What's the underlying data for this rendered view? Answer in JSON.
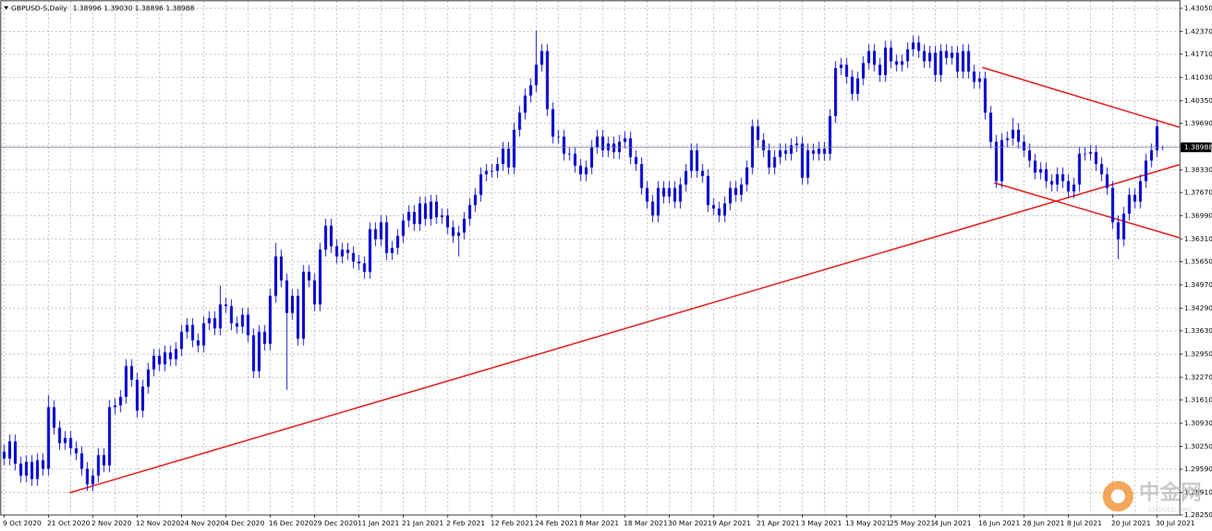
{
  "chart_data": {
    "type": "candlestick",
    "symbol": "GBPUSD-S,Daily",
    "quote": "1.38996 1.39030 1.38896 1.38988",
    "color": "#0000cc",
    "grid": true,
    "ylim": [
      1.2825,
      1.4327
    ],
    "yticks": [
      {
        "value": 1.4305,
        "label": "1.43050"
      },
      {
        "value": 1.4237,
        "label": "1.42370"
      },
      {
        "value": 1.4171,
        "label": "1.41710"
      },
      {
        "value": 1.4103,
        "label": "1.41030"
      },
      {
        "value": 1.4035,
        "label": "1.40350"
      },
      {
        "value": 1.3969,
        "label": "1.39690"
      },
      {
        "value": 1.3903,
        "label": "1.39030"
      },
      {
        "value": 1.3833,
        "label": "1.38330"
      },
      {
        "value": 1.3767,
        "label": "1.37670"
      },
      {
        "value": 1.3699,
        "label": "1.36990"
      },
      {
        "value": 1.3631,
        "label": "1.36310"
      },
      {
        "value": 1.3565,
        "label": "1.35650"
      },
      {
        "value": 1.3497,
        "label": "1.34970"
      },
      {
        "value": 1.3429,
        "label": "1.34290"
      },
      {
        "value": 1.3363,
        "label": "1.33630"
      },
      {
        "value": 1.3295,
        "label": "1.32950"
      },
      {
        "value": 1.3227,
        "label": "1.32270"
      },
      {
        "value": 1.3161,
        "label": "1.31610"
      },
      {
        "value": 1.3093,
        "label": "1.30930"
      },
      {
        "value": 1.3025,
        "label": "1.30250"
      },
      {
        "value": 1.2959,
        "label": "1.29590"
      },
      {
        "value": 1.2891,
        "label": "1.28910"
      },
      {
        "value": 1.2825,
        "label": "1.28250"
      }
    ],
    "current_price": {
      "value": 1.38988,
      "label": "1.38988"
    },
    "categories": [
      "9 Oct 2020",
      null,
      null,
      null,
      null,
      null,
      null,
      null,
      "21 Oct 2020",
      null,
      null,
      null,
      null,
      null,
      null,
      null,
      "2 Nov 2020",
      null,
      null,
      null,
      null,
      null,
      null,
      null,
      "12 Nov 2020",
      null,
      null,
      null,
      null,
      null,
      null,
      null,
      "24 Nov 2020",
      null,
      null,
      null,
      null,
      null,
      null,
      null,
      "4 Dec 2020",
      null,
      null,
      null,
      null,
      null,
      null,
      null,
      "16 Dec 2020",
      null,
      null,
      null,
      null,
      null,
      null,
      null,
      "29 Dec 2020",
      null,
      null,
      null,
      null,
      null,
      null,
      null,
      "11 Jan 2021",
      null,
      null,
      null,
      null,
      null,
      null,
      null,
      "21 Jan 2021",
      null,
      null,
      null,
      null,
      null,
      null,
      null,
      "2 Feb 2021",
      null,
      null,
      null,
      null,
      null,
      null,
      null,
      "12 Feb 2021",
      null,
      null,
      null,
      null,
      null,
      null,
      null,
      "24 Feb 2021",
      null,
      null,
      null,
      null,
      null,
      null,
      null,
      "8 Mar 2021",
      null,
      null,
      null,
      null,
      null,
      null,
      null,
      "18 Mar 2021",
      null,
      null,
      null,
      null,
      null,
      null,
      null,
      "30 Mar 2021",
      null,
      null,
      null,
      null,
      null,
      null,
      null,
      "9 Apr 2021",
      null,
      null,
      null,
      null,
      null,
      null,
      null,
      "21 Apr 2021",
      null,
      null,
      null,
      null,
      null,
      null,
      null,
      "3 May 2021",
      null,
      null,
      null,
      null,
      null,
      null,
      null,
      "13 May 2021",
      null,
      null,
      null,
      null,
      null,
      null,
      null,
      "25 May 2021",
      null,
      null,
      null,
      null,
      null,
      null,
      null,
      "4 Jun 2021",
      null,
      null,
      null,
      null,
      null,
      null,
      null,
      "16 Jun 2021",
      null,
      null,
      null,
      null,
      null,
      null,
      null,
      "28 Jun 2021",
      null,
      null,
      null,
      null,
      null,
      null,
      null,
      "8 Jul 2021",
      null,
      null,
      null,
      null,
      null,
      null,
      null,
      "20 Jul 2021",
      null,
      null,
      null,
      null,
      null,
      null,
      null,
      "30 Jul 2021",
      null
    ],
    "open": [
      1.301,
      1.299,
      1.304,
      1.2975,
      1.294,
      1.298,
      1.293,
      1.2985,
      1.296,
      1.314,
      1.308,
      1.3035,
      1.305,
      1.302,
      1.3005,
      1.296,
      1.2915,
      1.294,
      1.3,
      1.297,
      1.314,
      1.3145,
      1.317,
      1.326,
      1.322,
      1.313,
      1.32,
      1.325,
      1.329,
      1.3265,
      1.33,
      1.328,
      1.331,
      1.336,
      1.338,
      1.3335,
      1.332,
      1.3385,
      1.34,
      1.337,
      1.344,
      1.3435,
      1.3385,
      1.3375,
      1.341,
      1.335,
      1.3245,
      1.336,
      1.3325,
      1.3465,
      1.358,
      1.351,
      1.3415,
      1.3465,
      1.334,
      1.3535,
      1.351,
      1.344,
      1.36,
      1.367,
      1.361,
      1.358,
      1.36,
      1.359,
      1.3565,
      1.356,
      1.3535,
      1.366,
      1.363,
      1.368,
      1.359,
      1.3605,
      1.364,
      1.3685,
      1.371,
      1.3675,
      1.3735,
      1.369,
      1.374,
      1.3695,
      1.37,
      1.3665,
      1.364,
      1.365,
      1.369,
      1.373,
      1.376,
      1.382,
      1.383,
      1.383,
      1.385,
      1.3895,
      1.384,
      1.395,
      1.4,
      1.405,
      1.408,
      1.414,
      1.418,
      1.401,
      1.393,
      1.393,
      1.388,
      1.388,
      1.3845,
      1.382,
      1.384,
      1.39,
      1.393,
      1.389,
      1.391,
      1.3885,
      1.3915,
      1.3925,
      1.387,
      1.385,
      1.378,
      1.374,
      1.37,
      1.378,
      1.3755,
      1.378,
      1.374,
      1.379,
      1.383,
      1.389,
      1.383,
      1.3815,
      1.373,
      1.372,
      1.37,
      1.3735,
      1.378,
      1.376,
      1.379,
      1.384,
      1.396,
      1.392,
      1.389,
      1.384,
      1.387,
      1.389,
      1.388,
      1.3905,
      1.391,
      1.381,
      1.389,
      1.388,
      1.3895,
      1.388,
      1.399,
      1.413,
      1.414,
      1.4105,
      1.4055,
      1.41,
      1.4145,
      1.418,
      1.414,
      1.411,
      1.419,
      1.415,
      1.414,
      1.415,
      1.4185,
      1.4205,
      1.418,
      1.415,
      1.4175,
      1.411,
      1.418,
      1.416,
      1.4175,
      1.412,
      1.418,
      1.412,
      1.409,
      1.41,
      1.4,
      1.3915,
      1.38,
      1.392,
      1.3925,
      1.395,
      1.3915,
      1.389,
      1.386,
      1.3825,
      1.3835,
      1.38,
      1.379,
      1.382,
      1.38,
      1.377,
      1.379,
      1.388,
      1.388,
      1.3885,
      1.385,
      1.382,
      1.378,
      1.368,
      1.363,
      1.3705,
      1.376,
      1.374,
      1.38,
      1.386,
      1.389,
      1.38996
    ],
    "high": [
      1.303,
      1.306,
      1.306,
      1.2995,
      1.3,
      1.3,
      1.3005,
      1.3005,
      1.3175,
      1.316,
      1.31,
      1.307,
      1.307,
      1.304,
      1.3025,
      1.298,
      1.296,
      1.302,
      1.302,
      1.316,
      1.3165,
      1.319,
      1.328,
      1.328,
      1.324,
      1.322,
      1.327,
      1.331,
      1.331,
      1.332,
      1.332,
      1.333,
      1.338,
      1.34,
      1.34,
      1.3355,
      1.3405,
      1.342,
      1.342,
      1.3495,
      1.346,
      1.3455,
      1.3405,
      1.343,
      1.343,
      1.337,
      1.338,
      1.338,
      1.3485,
      1.362,
      1.36,
      1.353,
      1.3485,
      1.3485,
      1.3555,
      1.3555,
      1.353,
      1.362,
      1.369,
      1.369,
      1.363,
      1.362,
      1.362,
      1.361,
      1.3585,
      1.358,
      1.368,
      1.368,
      1.37,
      1.37,
      1.3625,
      1.366,
      1.3705,
      1.373,
      1.373,
      1.3755,
      1.3755,
      1.376,
      1.376,
      1.372,
      1.372,
      1.3685,
      1.367,
      1.371,
      1.375,
      1.378,
      1.384,
      1.385,
      1.385,
      1.387,
      1.3915,
      1.3915,
      1.397,
      1.402,
      1.407,
      1.41,
      1.424,
      1.42,
      1.42,
      1.403,
      1.395,
      1.395,
      1.39,
      1.39,
      1.3865,
      1.386,
      1.392,
      1.395,
      1.395,
      1.393,
      1.393,
      1.3935,
      1.3945,
      1.3945,
      1.389,
      1.387,
      1.38,
      1.376,
      1.38,
      1.38,
      1.38,
      1.38,
      1.381,
      1.385,
      1.391,
      1.391,
      1.385,
      1.3835,
      1.375,
      1.374,
      1.3755,
      1.38,
      1.38,
      1.381,
      1.386,
      1.398,
      1.398,
      1.394,
      1.391,
      1.389,
      1.391,
      1.391,
      1.3925,
      1.393,
      1.393,
      1.391,
      1.391,
      1.3915,
      1.3915,
      1.401,
      1.415,
      1.416,
      1.416,
      1.4125,
      1.412,
      1.4165,
      1.42,
      1.42,
      1.416,
      1.421,
      1.421,
      1.417,
      1.417,
      1.4205,
      1.4225,
      1.4225,
      1.42,
      1.4195,
      1.4195,
      1.42,
      1.42,
      1.4195,
      1.4195,
      1.42,
      1.42,
      1.414,
      1.412,
      1.412,
      1.402,
      1.3935,
      1.394,
      1.3945,
      1.3985,
      1.397,
      1.3935,
      1.391,
      1.388,
      1.3855,
      1.3855,
      1.382,
      1.384,
      1.384,
      1.382,
      1.381,
      1.39,
      1.39,
      1.3905,
      1.3905,
      1.387,
      1.384,
      1.38,
      1.37,
      1.3725,
      1.378,
      1.378,
      1.382,
      1.388,
      1.391,
      1.398,
      1.3903
    ],
    "low": [
      1.297,
      1.297,
      1.2955,
      1.292,
      1.292,
      1.291,
      1.291,
      1.294,
      1.294,
      1.306,
      1.3015,
      1.3015,
      1.3,
      1.2985,
      1.294,
      1.2895,
      1.2895,
      1.292,
      1.295,
      1.295,
      1.312,
      1.3125,
      1.315,
      1.32,
      1.311,
      1.311,
      1.318,
      1.323,
      1.3245,
      1.3245,
      1.326,
      1.326,
      1.329,
      1.334,
      1.3315,
      1.33,
      1.33,
      1.3365,
      1.335,
      1.335,
      1.3415,
      1.3365,
      1.3355,
      1.3355,
      1.333,
      1.3225,
      1.3225,
      1.3305,
      1.3305,
      1.3445,
      1.349,
      1.319,
      1.3395,
      1.332,
      1.332,
      1.349,
      1.342,
      1.342,
      1.358,
      1.359,
      1.356,
      1.356,
      1.357,
      1.3545,
      1.354,
      1.3515,
      1.3515,
      1.361,
      1.361,
      1.357,
      1.357,
      1.3585,
      1.362,
      1.3665,
      1.3655,
      1.3655,
      1.367,
      1.367,
      1.3675,
      1.3675,
      1.3645,
      1.362,
      1.358,
      1.363,
      1.367,
      1.371,
      1.374,
      1.38,
      1.381,
      1.381,
      1.383,
      1.382,
      1.382,
      1.393,
      1.398,
      1.403,
      1.406,
      1.412,
      1.399,
      1.391,
      1.391,
      1.386,
      1.386,
      1.3825,
      1.38,
      1.38,
      1.382,
      1.388,
      1.387,
      1.387,
      1.3865,
      1.3865,
      1.3895,
      1.385,
      1.383,
      1.376,
      1.372,
      1.368,
      1.368,
      1.3735,
      1.3735,
      1.372,
      1.372,
      1.377,
      1.381,
      1.381,
      1.3795,
      1.371,
      1.37,
      1.368,
      1.368,
      1.3715,
      1.374,
      1.374,
      1.377,
      1.382,
      1.39,
      1.387,
      1.382,
      1.382,
      1.385,
      1.386,
      1.386,
      1.3885,
      1.379,
      1.379,
      1.386,
      1.386,
      1.386,
      1.386,
      1.397,
      1.411,
      1.4085,
      1.4035,
      1.4035,
      1.408,
      1.4125,
      1.412,
      1.409,
      1.409,
      1.413,
      1.412,
      1.412,
      1.413,
      1.4165,
      1.416,
      1.413,
      1.413,
      1.409,
      1.409,
      1.414,
      1.414,
      1.41,
      1.41,
      1.41,
      1.407,
      1.407,
      1.398,
      1.3895,
      1.378,
      1.378,
      1.39,
      1.3905,
      1.3895,
      1.387,
      1.384,
      1.3805,
      1.3805,
      1.378,
      1.377,
      1.377,
      1.378,
      1.375,
      1.375,
      1.377,
      1.386,
      1.386,
      1.383,
      1.38,
      1.376,
      1.366,
      1.3572,
      1.361,
      1.3685,
      1.372,
      1.372,
      1.378,
      1.384,
      1.387,
      1.38896
    ],
    "close": [
      1.299,
      1.304,
      1.2975,
      1.294,
      1.298,
      1.293,
      1.2985,
      1.296,
      1.314,
      1.308,
      1.3035,
      1.305,
      1.302,
      1.3005,
      1.296,
      1.2915,
      1.294,
      1.3,
      1.297,
      1.314,
      1.3145,
      1.317,
      1.326,
      1.322,
      1.313,
      1.32,
      1.325,
      1.329,
      1.3265,
      1.33,
      1.328,
      1.331,
      1.336,
      1.338,
      1.3335,
      1.332,
      1.3385,
      1.34,
      1.337,
      1.344,
      1.3435,
      1.3385,
      1.3375,
      1.341,
      1.335,
      1.3245,
      1.336,
      1.3325,
      1.3465,
      1.358,
      1.351,
      1.3415,
      1.3465,
      1.334,
      1.3535,
      1.351,
      1.344,
      1.36,
      1.367,
      1.361,
      1.358,
      1.36,
      1.359,
      1.3565,
      1.356,
      1.3535,
      1.366,
      1.363,
      1.368,
      1.359,
      1.3605,
      1.364,
      1.3685,
      1.371,
      1.3675,
      1.3735,
      1.369,
      1.374,
      1.3695,
      1.37,
      1.3665,
      1.364,
      1.365,
      1.369,
      1.373,
      1.376,
      1.382,
      1.383,
      1.383,
      1.385,
      1.3895,
      1.384,
      1.395,
      1.4,
      1.405,
      1.408,
      1.414,
      1.418,
      1.401,
      1.393,
      1.393,
      1.388,
      1.388,
      1.3845,
      1.382,
      1.384,
      1.39,
      1.393,
      1.389,
      1.391,
      1.3885,
      1.3915,
      1.3925,
      1.387,
      1.385,
      1.378,
      1.374,
      1.37,
      1.378,
      1.3755,
      1.378,
      1.374,
      1.379,
      1.383,
      1.389,
      1.383,
      1.3815,
      1.373,
      1.372,
      1.37,
      1.3735,
      1.378,
      1.376,
      1.379,
      1.384,
      1.396,
      1.392,
      1.389,
      1.384,
      1.387,
      1.389,
      1.388,
      1.3905,
      1.391,
      1.381,
      1.389,
      1.388,
      1.3895,
      1.388,
      1.399,
      1.413,
      1.414,
      1.4105,
      1.4055,
      1.41,
      1.4145,
      1.418,
      1.414,
      1.411,
      1.419,
      1.415,
      1.414,
      1.415,
      1.4185,
      1.4205,
      1.418,
      1.415,
      1.4175,
      1.411,
      1.418,
      1.416,
      1.4175,
      1.412,
      1.418,
      1.412,
      1.409,
      1.41,
      1.4,
      1.3915,
      1.38,
      1.392,
      1.3925,
      1.395,
      1.3915,
      1.389,
      1.386,
      1.3825,
      1.3835,
      1.38,
      1.379,
      1.382,
      1.38,
      1.377,
      1.379,
      1.388,
      1.388,
      1.3885,
      1.385,
      1.382,
      1.378,
      1.368,
      1.363,
      1.3705,
      1.376,
      1.374,
      1.38,
      1.386,
      1.389,
      1.396,
      1.38988
    ]
  },
  "watermark": {
    "title": "中金网",
    "subtitle": "CNGOLD.ORG"
  }
}
